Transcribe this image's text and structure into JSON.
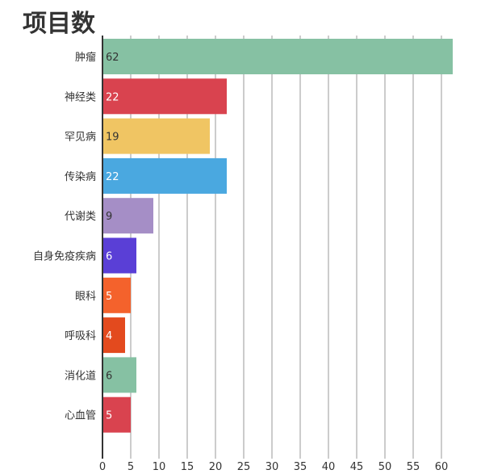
{
  "chart_data": {
    "type": "bar",
    "orientation": "horizontal",
    "title": "项目数",
    "categories": [
      "肿瘤",
      "神经类",
      "罕见病",
      "传染病",
      "代谢类",
      "自身免疫疾病",
      "眼科",
      "呼吸科",
      "消化道",
      "心血管"
    ],
    "values": [
      62,
      22,
      19,
      22,
      9,
      6,
      5,
      4,
      6,
      5
    ],
    "colors": [
      "#86c1a3",
      "#d9434f",
      "#f0c563",
      "#4aa8e0",
      "#a58ec6",
      "#5a3fd6",
      "#f4622c",
      "#e34a1e",
      "#86c1a3",
      "#d9434f"
    ],
    "xlim": [
      0,
      63
    ],
    "xticks": [
      0,
      5,
      10,
      15,
      20,
      25,
      30,
      35,
      40,
      45,
      50,
      55,
      60
    ],
    "grid": true,
    "xlabel": "",
    "ylabel": ""
  }
}
